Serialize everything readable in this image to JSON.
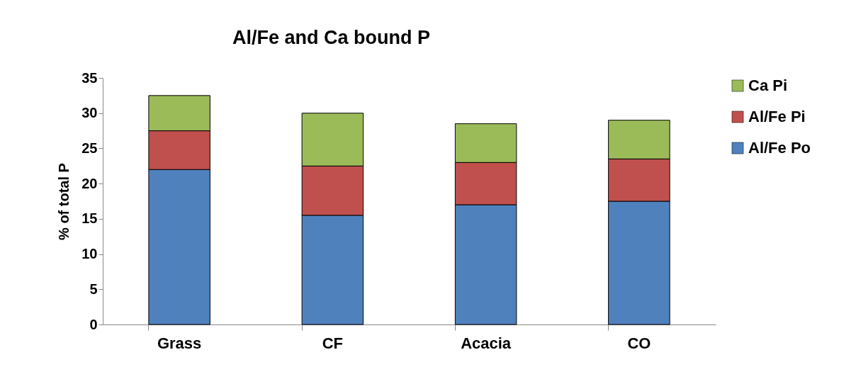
{
  "chart_data": {
    "type": "bar",
    "title": "Al/Fe and Ca bound P",
    "ylabel": "% of total P",
    "categories": [
      "Grass",
      "CF",
      "Acacia",
      "CO"
    ],
    "stacked": true,
    "ylim": [
      0,
      35
    ],
    "yticks": [
      0,
      5,
      10,
      15,
      20,
      25,
      30,
      35
    ],
    "grid": false,
    "legend": "right",
    "series": [
      {
        "name": "Al/Fe Po",
        "color": "#4f81bd",
        "values": [
          22,
          15.5,
          17,
          17.5
        ]
      },
      {
        "name": "Al/Fe Pi",
        "color": "#c0504d",
        "values": [
          5.5,
          7,
          6,
          6
        ]
      },
      {
        "name": "Ca Pi",
        "color": "#9bbb59",
        "values": [
          5,
          7.5,
          5.5,
          5.5
        ]
      }
    ]
  }
}
